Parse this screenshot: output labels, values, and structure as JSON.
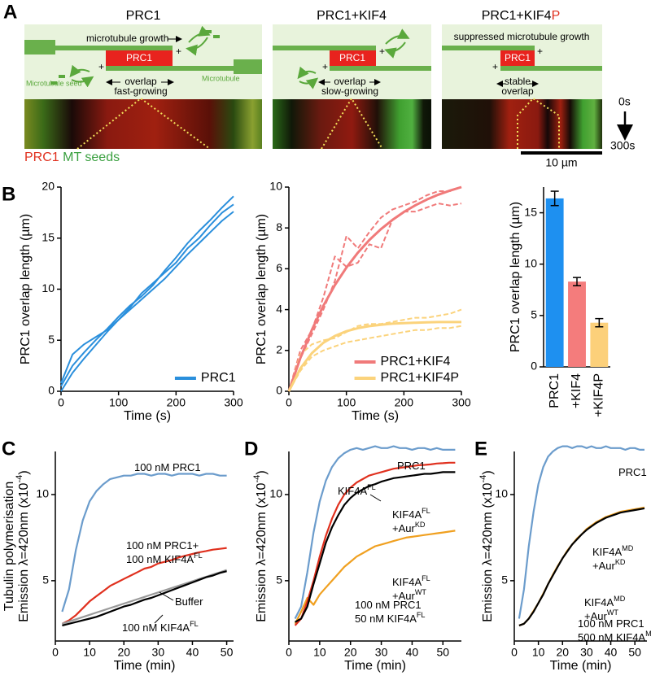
{
  "panel_labels": [
    "A",
    "B",
    "C",
    "D",
    "E"
  ],
  "panel_a": {
    "panels": [
      {
        "title": [
          "PRC1"
        ],
        "labels": [
          "microtubule growth",
          "PRC1",
          "Microtubule seed",
          "Microtubule",
          "overlap",
          "fast-growing"
        ]
      },
      {
        "title": [
          "PRC1+KIF4"
        ],
        "labels": [
          "PRC1",
          "overlap",
          "slow-growing"
        ]
      },
      {
        "title": [
          "PRC1+KIF4",
          "P"
        ],
        "labels": [
          "suppressed microtubule growth",
          "PRC1",
          "stable",
          "overlap"
        ]
      }
    ],
    "plus": "+",
    "time_start": "0s",
    "time_end": "300s",
    "scale_bar": "10 µm",
    "legend": [
      "PRC1",
      "MT seeds"
    ]
  },
  "chart_data": [
    {
      "type": "line",
      "x": [
        0,
        20,
        40,
        60,
        80,
        100,
        120,
        140,
        160,
        180,
        200,
        220,
        240,
        260,
        280,
        300
      ],
      "xlim": [
        0,
        300
      ],
      "ylim": [
        0,
        20
      ],
      "xticks": [
        0,
        100,
        200,
        300
      ],
      "yticks": [
        0,
        5,
        10,
        15,
        20
      ],
      "xlabel": "Time (s)",
      "ylabel": "PRC1 overlap length (µm)",
      "legend": "lower right",
      "series": [
        {
          "name": "PRC1",
          "color": "#2a8fdc",
          "values": [
            0.8,
            3.6,
            4.6,
            5.3,
            6.0,
            7.0,
            8.2,
            9.6,
            10.6,
            11.6,
            12.6,
            14.0,
            15.0,
            16.3,
            17.5,
            18.3
          ]
        },
        {
          "color": "#2a8fdc",
          "values": [
            0.5,
            2.5,
            3.8,
            5.0,
            6.1,
            7.3,
            8.4,
            9.3,
            10.4,
            11.8,
            13.1,
            14.5,
            15.7,
            16.8,
            18.0,
            19.1
          ]
        },
        {
          "color": "#2a8fdc",
          "values": [
            0,
            1.8,
            3.2,
            4.5,
            5.8,
            7.0,
            8.0,
            9.0,
            10.0,
            11.0,
            12.2,
            13.4,
            14.5,
            15.6,
            16.7,
            17.6
          ]
        }
      ]
    },
    {
      "type": "line",
      "x": [
        0,
        20,
        40,
        60,
        80,
        100,
        120,
        140,
        160,
        180,
        200,
        220,
        240,
        260,
        280,
        300
      ],
      "xlim": [
        0,
        300
      ],
      "ylim": [
        0,
        10
      ],
      "xticks": [
        0,
        100,
        200,
        300
      ],
      "yticks": [
        0,
        2,
        4,
        6,
        8,
        10
      ],
      "xlabel": "Time (s)",
      "ylabel": "PRC1 overlap length (µm)",
      "legend": "lower right",
      "series": [
        {
          "color": "#f07a7a",
          "dash": true,
          "values": [
            0,
            2.0,
            3.0,
            4.6,
            6.6,
            6.1,
            6.3,
            7.2,
            7.0,
            8.4,
            8.8,
            8.8,
            9.0,
            9.2,
            9.1,
            9.2
          ]
        },
        {
          "color": "#f07a7a",
          "dash": true,
          "values": [
            0,
            1.6,
            2.8,
            4.0,
            5.4,
            7.6,
            7.0,
            7.8,
            8.5,
            8.9,
            9.1,
            9.3,
            9.6,
            9.8,
            9.8,
            10.0
          ]
        },
        {
          "color": "#fbd37c",
          "dash": true,
          "values": [
            0,
            1.8,
            2.3,
            2.5,
            2.6,
            2.9,
            3.2,
            3.3,
            3.3,
            3.4,
            3.5,
            3.6,
            3.6,
            3.7,
            3.8,
            4.0
          ]
        },
        {
          "color": "#fbd37c",
          "dash": true,
          "values": [
            0,
            1.0,
            1.7,
            2.0,
            2.2,
            2.4,
            2.5,
            2.6,
            2.7,
            2.8,
            2.9,
            3.0,
            3.0,
            3.1,
            3.1,
            3.2
          ]
        },
        {
          "name": "PRC1+KIF4",
          "color": "#f07a7a",
          "values": [
            0,
            1.63,
            3.01,
            4.19,
            5.2,
            6.06,
            6.79,
            7.41,
            7.94,
            8.39,
            8.78,
            9.11,
            9.39,
            9.63,
            9.83,
            10.0
          ]
        },
        {
          "name": "PRC1+KIF4P",
          "color": "#fbd37c",
          "values": [
            0,
            1.12,
            1.87,
            2.38,
            2.71,
            2.94,
            3.09,
            3.19,
            3.26,
            3.31,
            3.34,
            3.36,
            3.38,
            3.39,
            3.39,
            3.39
          ]
        }
      ]
    },
    {
      "type": "bar",
      "categories": [
        "PRC1",
        "+KIF4",
        "+KIF4P"
      ],
      "values": [
        16.4,
        8.3,
        4.3
      ],
      "errors": [
        0.7,
        0.4,
        0.4
      ],
      "colors": [
        "#1e90f0",
        "#f47c7c",
        "#fcd07a"
      ],
      "ylim": [
        0,
        17.5
      ],
      "yticks": [
        0,
        5,
        10,
        15
      ],
      "ylabel": "PRC1 overlap length (µm)"
    },
    {
      "type": "line",
      "x": [
        2,
        4,
        6,
        8,
        10,
        12,
        14,
        16,
        18,
        20,
        22,
        24,
        26,
        28,
        30,
        32,
        34,
        36,
        38,
        40,
        42,
        44,
        46,
        48,
        50
      ],
      "xlim": [
        0,
        52
      ],
      "ylim": [
        1.5,
        12.5
      ],
      "xticks": [
        0,
        10,
        20,
        30,
        40,
        50
      ],
      "yticks": [
        5,
        10
      ],
      "xlabel": "Time (min)",
      "ylabel": [
        [
          "Tubulin polymerisation"
        ],
        [
          "Emission λ=420nm (x10",
          "-4",
          ")"
        ]
      ],
      "series": [
        {
          "color": "#6b9ccc",
          "values": [
            3.2,
            4.5,
            6.8,
            8.5,
            9.6,
            10.2,
            10.6,
            10.9,
            11.0,
            11.1,
            11.1,
            11.2,
            11.2,
            11.1,
            11.2,
            11.2,
            11.1,
            11.2,
            11.2,
            11.2,
            11.1,
            11.2,
            11.2,
            11.1,
            11.1
          ]
        },
        {
          "color": "#e0301e",
          "values": [
            2.5,
            2.7,
            3.0,
            3.4,
            3.8,
            4.1,
            4.4,
            4.7,
            4.9,
            5.1,
            5.3,
            5.5,
            5.7,
            5.8,
            6.0,
            6.1,
            6.2,
            6.35,
            6.45,
            6.55,
            6.65,
            6.72,
            6.8,
            6.85,
            6.9
          ]
        },
        {
          "color": "#9a9a9a",
          "values": [
            2.5,
            2.63,
            2.76,
            2.89,
            3.02,
            3.15,
            3.28,
            3.41,
            3.54,
            3.67,
            3.8,
            3.93,
            4.06,
            4.19,
            4.32,
            4.45,
            4.58,
            4.71,
            4.84,
            4.97,
            5.1,
            5.23,
            5.36,
            5.49,
            5.62
          ]
        },
        {
          "color": "#000000",
          "values": [
            2.4,
            2.5,
            2.6,
            2.7,
            2.8,
            2.9,
            3.05,
            3.2,
            3.35,
            3.5,
            3.6,
            3.75,
            3.9,
            4.0,
            4.15,
            4.3,
            4.45,
            4.6,
            4.75,
            4.9,
            5.05,
            5.2,
            5.3,
            5.45,
            5.55
          ]
        }
      ],
      "annotations": [
        [
          [
            "100 nM PRC1"
          ]
        ],
        [
          [
            "100 nM PRC1+"
          ],
          [
            "100 nM KIF4A",
            "FL"
          ]
        ],
        [
          [
            "Buffer"
          ]
        ],
        [
          [
            "100 nM KIF4A",
            "FL"
          ]
        ]
      ]
    },
    {
      "type": "line",
      "x": [
        2,
        4,
        6,
        8,
        10,
        12,
        14,
        16,
        18,
        20,
        22,
        24,
        26,
        28,
        30,
        32,
        34,
        36,
        38,
        40,
        42,
        44,
        46,
        48,
        50,
        52,
        54
      ],
      "xlim": [
        0,
        56
      ],
      "ylim": [
        1.5,
        12.5
      ],
      "xticks": [
        0,
        10,
        20,
        30,
        40,
        50
      ],
      "yticks": [
        5,
        10
      ],
      "xlabel": "Time (min)",
      "ylabel": [
        [
          "Emission λ=420nm (x10",
          "-4",
          ")"
        ]
      ],
      "series": [
        {
          "color": "#6b9ccc",
          "values": [
            2.8,
            3.5,
            5.5,
            7.8,
            9.6,
            10.8,
            11.6,
            12.1,
            12.4,
            12.6,
            12.7,
            12.6,
            12.7,
            12.8,
            12.7,
            12.7,
            12.8,
            12.7,
            12.7,
            12.6,
            12.7,
            12.7,
            12.6,
            12.7,
            12.6,
            12.6,
            12.6
          ]
        },
        {
          "color": "#f0a020",
          "values": [
            2.5,
            3.2,
            4.0,
            3.6,
            4.2,
            4.6,
            5.0,
            5.4,
            5.8,
            6.1,
            6.4,
            6.6,
            6.8,
            7.0,
            7.1,
            7.2,
            7.3,
            7.4,
            7.5,
            7.55,
            7.6,
            7.65,
            7.7,
            7.75,
            7.8,
            7.85,
            7.9
          ]
        },
        {
          "color": "#e0301e",
          "values": [
            2.4,
            2.8,
            3.8,
            5.0,
            6.4,
            7.6,
            8.6,
            9.4,
            10.0,
            10.4,
            10.7,
            10.9,
            11.1,
            11.2,
            11.3,
            11.4,
            11.5,
            11.55,
            11.6,
            11.65,
            11.7,
            11.72,
            11.75,
            11.8,
            11.82,
            11.85,
            11.85
          ]
        },
        {
          "color": "#000000",
          "values": [
            2.6,
            2.8,
            3.5,
            4.8,
            6.0,
            7.2,
            8.1,
            8.8,
            9.4,
            9.8,
            10.1,
            10.3,
            10.5,
            10.6,
            10.75,
            10.85,
            10.95,
            11.0,
            11.05,
            11.1,
            11.15,
            11.2,
            11.2,
            11.25,
            11.3,
            11.3,
            11.3
          ]
        }
      ],
      "annotations": [
        [
          [
            "PRC1"
          ]
        ],
        [
          [
            "KIF4A",
            "FL"
          ]
        ],
        [
          [
            "KIF4A",
            "FL"
          ],
          [
            "+Aur",
            "KD"
          ]
        ],
        [
          [
            "KIF4A",
            "FL"
          ],
          [
            "+Aur",
            "WT"
          ]
        ],
        [
          [
            "100 nM PRC1"
          ],
          [
            "50 nM KIF4A",
            "FL"
          ]
        ]
      ]
    },
    {
      "type": "line",
      "x": [
        2,
        4,
        6,
        8,
        10,
        12,
        14,
        16,
        18,
        20,
        22,
        24,
        26,
        28,
        30,
        32,
        34,
        36,
        38,
        40,
        42,
        44,
        46,
        48,
        50,
        52,
        54
      ],
      "xlim": [
        0,
        55
      ],
      "ylim": [
        1.5,
        12.5
      ],
      "xticks": [
        0,
        10,
        20,
        30,
        40,
        50
      ],
      "yticks": [
        5,
        10
      ],
      "xlabel": "Time (min)",
      "ylabel": [
        [
          "Emission λ=420nm (x10",
          "-4",
          ")"
        ]
      ],
      "series": [
        {
          "color": "#6b9ccc",
          "values": [
            2.8,
            4.5,
            7.0,
            9.0,
            10.6,
            11.6,
            12.2,
            12.5,
            12.7,
            12.8,
            12.8,
            12.7,
            12.8,
            12.8,
            12.7,
            12.8,
            12.7,
            12.7,
            12.8,
            12.7,
            12.7,
            12.7,
            12.6,
            12.7,
            12.7,
            12.6,
            12.6
          ]
        },
        {
          "color": "#f0a020",
          "values": [
            2.4,
            2.5,
            2.8,
            3.25,
            3.7,
            4.25,
            4.8,
            5.35,
            5.85,
            6.3,
            6.75,
            7.1,
            7.45,
            7.7,
            8.0,
            8.2,
            8.4,
            8.55,
            8.7,
            8.8,
            8.9,
            9.0,
            9.05,
            9.1,
            9.15,
            9.2,
            9.25
          ]
        },
        {
          "color": "#000000",
          "values": [
            2.4,
            2.5,
            2.8,
            3.2,
            3.7,
            4.2,
            4.8,
            5.3,
            5.8,
            6.3,
            6.7,
            7.1,
            7.4,
            7.7,
            7.95,
            8.15,
            8.35,
            8.5,
            8.65,
            8.75,
            8.85,
            8.95,
            9.0,
            9.05,
            9.1,
            9.15,
            9.2
          ]
        }
      ],
      "annotations": [
        [
          [
            "PRC1"
          ]
        ],
        [
          [
            "KIF4A",
            "MD"
          ],
          [
            "+Aur",
            "KD"
          ]
        ],
        [
          [
            "KIF4A",
            "MD"
          ],
          [
            "+Aur",
            "WT"
          ]
        ],
        [
          [
            "100 nM PRC1"
          ],
          [
            "500 nM KIF4A",
            "MD"
          ]
        ]
      ]
    }
  ]
}
